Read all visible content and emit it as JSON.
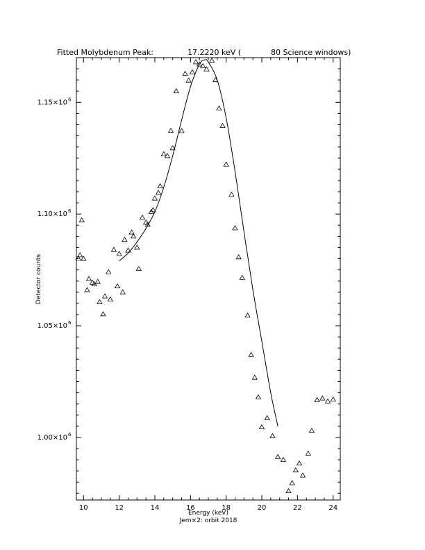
{
  "chart_data": {
    "type": "scatter",
    "title_left": "Fitted Molybdenum Peak:",
    "title_value": "17.2220 keV (",
    "title_right": "80 Science windows)",
    "xlabel": "Energy (keV)",
    "ylabel": "Detector counts",
    "footer": "Jem×2: orbit 2018",
    "xlim": [
      9.6,
      24.4
    ],
    "ylim": [
      972000,
      1170000
    ],
    "x_ticks": [
      10,
      12,
      14,
      16,
      18,
      20,
      22,
      24
    ],
    "x_tick_labels": [
      "10",
      "12",
      "14",
      "16",
      "18",
      "20",
      "22",
      "24"
    ],
    "y_ticks": [
      1000000,
      1050000,
      1100000,
      1150000
    ],
    "y_tick_mantissas": [
      "1.00×10",
      "1.05×10",
      "1.10×10",
      "1.15×10"
    ],
    "y_tick_exponent": "6",
    "series": [
      {
        "marker": "triangle",
        "x": [
          9.7,
          9.8,
          9.9,
          10.0,
          10.2,
          10.3,
          10.5,
          10.6,
          10.8,
          10.9,
          11.1,
          11.2,
          11.4,
          11.5,
          11.7,
          11.9,
          12.0,
          12.2,
          12.3,
          12.5,
          12.7,
          12.8,
          13.0,
          13.1,
          13.3,
          13.5,
          13.6,
          13.8,
          13.9,
          14.0,
          14.2,
          14.3,
          14.5,
          14.7,
          14.9,
          15.0,
          15.2,
          15.5,
          15.7,
          15.9,
          16.1,
          16.3,
          16.5,
          16.7,
          16.9,
          17.2,
          17.4,
          17.6,
          17.8,
          18.0,
          18.3,
          18.5,
          18.7,
          18.9,
          19.2,
          19.4,
          19.6,
          19.8,
          20.0,
          20.3,
          20.6,
          20.9,
          21.2,
          21.5,
          21.7,
          21.9,
          22.1,
          22.3,
          22.6,
          22.8,
          23.1,
          23.4,
          23.7,
          24.0
        ],
        "y": [
          1080200,
          1081600,
          1097200,
          1080000,
          1066000,
          1071000,
          1069300,
          1068600,
          1069700,
          1060600,
          1055200,
          1063200,
          1074000,
          1061800,
          1084000,
          1067700,
          1082200,
          1065000,
          1088500,
          1083700,
          1091800,
          1090000,
          1085000,
          1075500,
          1098400,
          1096200,
          1095300,
          1101000,
          1101800,
          1107000,
          1109500,
          1112500,
          1126800,
          1126000,
          1137300,
          1129500,
          1155000,
          1137200,
          1162800,
          1159800,
          1163500,
          1168000,
          1167000,
          1166200,
          1164800,
          1168700,
          1160000,
          1147300,
          1139500,
          1122200,
          1108700,
          1093700,
          1080700,
          1071500,
          1054600,
          1037000,
          1026800,
          1018000,
          1004600,
          1008700,
          1000600,
          991300,
          990000,
          976000,
          979600,
          985300,
          988400,
          983000,
          992800,
          1003000,
          1016800,
          1017500,
          1016200,
          1017000
        ]
      }
    ],
    "fit_curve": {
      "x": [
        12.0,
        12.5,
        13.0,
        13.5,
        14.0,
        14.5,
        15.0,
        15.5,
        16.0,
        16.5,
        16.8,
        17.0,
        17.5,
        18.0,
        18.5,
        19.0,
        19.5,
        20.0,
        20.5,
        20.9
      ],
      "y": [
        1079000,
        1082500,
        1087500,
        1093500,
        1101000,
        1112000,
        1126000,
        1142000,
        1157000,
        1167000,
        1169000,
        1168000,
        1160000,
        1143000,
        1119000,
        1092000,
        1066000,
        1043000,
        1020000,
        1005000
      ]
    }
  }
}
